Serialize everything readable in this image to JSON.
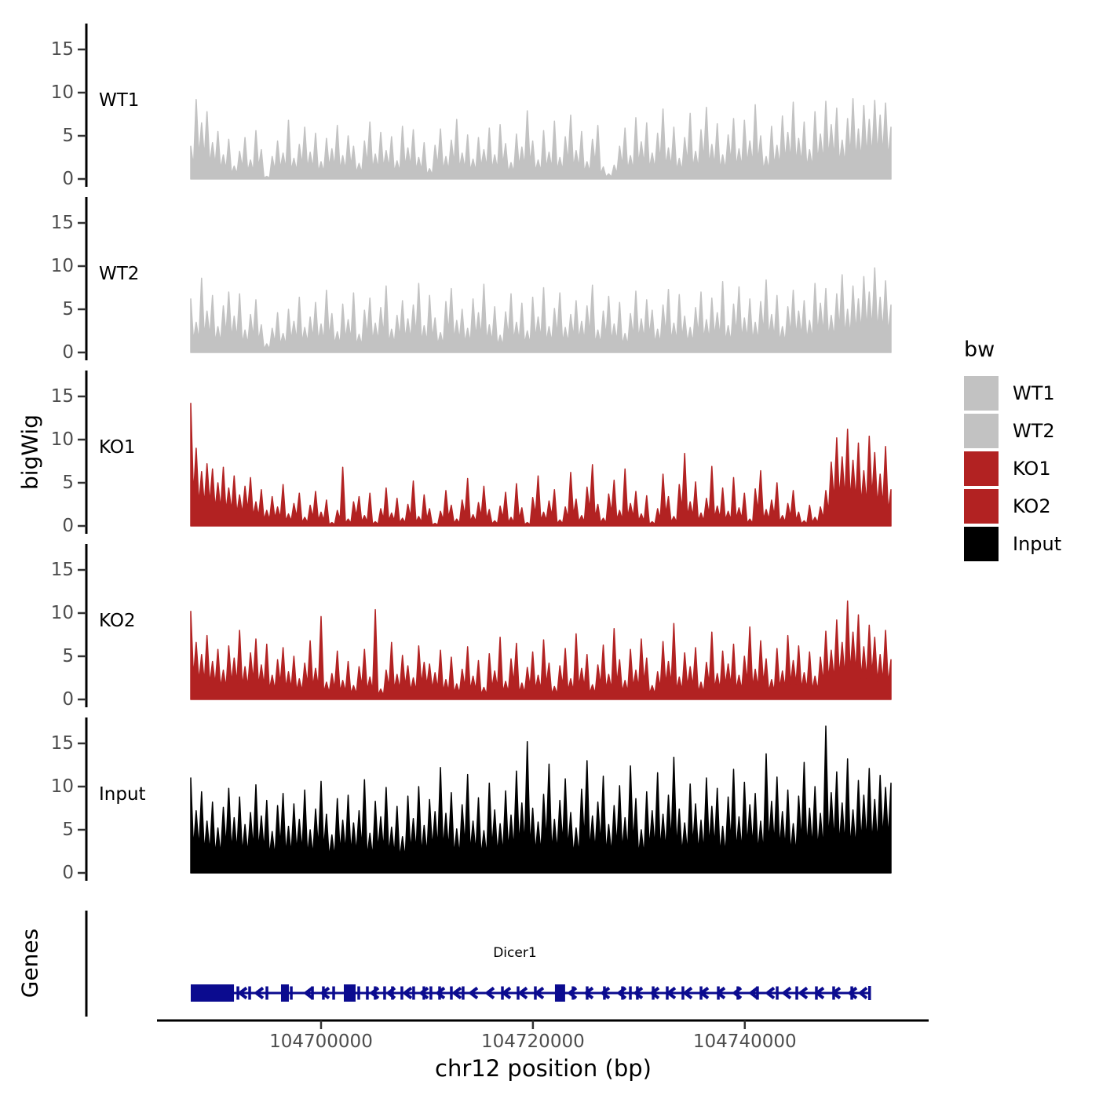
{
  "figure": {
    "background": "#ffffff",
    "axis_line_color": "#000000",
    "tick_label_color": "#4d4d4d"
  },
  "chart_data": {
    "type": "area",
    "title": "",
    "xlabel": "chr12 position (bp)",
    "ylabel": "bigWig",
    "x_start": 104687700,
    "x_end": 104753800,
    "x_ticks": [
      104700000,
      104720000,
      104740000
    ],
    "x_tick_labels": [
      "104700000",
      "104720000",
      "104740000"
    ],
    "ylim": [
      0,
      17.5
    ],
    "y_ticks": [
      0,
      5,
      10,
      15
    ],
    "y_tick_labels": [
      "0",
      "5",
      "10",
      "15"
    ],
    "grid": "off",
    "legend_position": "right",
    "legend": {
      "title": "bw",
      "entries": [
        {
          "label": "WT1",
          "color": "#c2c2c2"
        },
        {
          "label": "WT2",
          "color": "#c2c2c2"
        },
        {
          "label": "KO1",
          "color": "#b22222"
        },
        {
          "label": "KO2",
          "color": "#b22222"
        },
        {
          "label": "Input",
          "color": "#000000"
        }
      ]
    },
    "series": [
      {
        "name": "WT1",
        "color": "#c2c2c2",
        "values": [
          3.8,
          9.2,
          6.5,
          7.8,
          4.2,
          5.5,
          2.8,
          4.6,
          1.5,
          3.2,
          4.8,
          2.2,
          5.6,
          3.4,
          0.3,
          2.6,
          4.4,
          3.0,
          6.8,
          2.4,
          4.0,
          6.0,
          3.1,
          5.3,
          2.0,
          4.7,
          3.5,
          6.2,
          2.7,
          5.0,
          3.8,
          1.8,
          4.4,
          6.6,
          2.9,
          5.4,
          3.3,
          4.9,
          2.1,
          6.1,
          3.6,
          5.7,
          2.5,
          4.2,
          1.2,
          3.9,
          5.8,
          2.6,
          4.5,
          6.9,
          3.0,
          5.1,
          2.3,
          4.8,
          3.4,
          5.9,
          2.8,
          6.3,
          4.1,
          1.9,
          5.2,
          3.7,
          7.9,
          4.4,
          2.2,
          5.6,
          3.1,
          6.7,
          2.5,
          4.9,
          7.4,
          3.3,
          5.5,
          2.0,
          4.6,
          6.2,
          1.4,
          0.6,
          1.6,
          3.8,
          5.9,
          2.7,
          7.1,
          4.3,
          6.5,
          3.0,
          5.3,
          8.1,
          3.6,
          6.0,
          2.4,
          4.8,
          7.6,
          3.2,
          5.7,
          8.3,
          4.0,
          6.4,
          2.8,
          5.1,
          7.0,
          3.5,
          6.8,
          4.4,
          8.6,
          5.0,
          2.6,
          6.1,
          3.9,
          7.3,
          5.4,
          8.9,
          4.7,
          6.6,
          3.4,
          7.8,
          5.2,
          9.0,
          6.3,
          8.2,
          4.5,
          7.0,
          9.3,
          5.8,
          8.5,
          6.9,
          9.1,
          7.4,
          8.8,
          6.0
        ]
      },
      {
        "name": "WT2",
        "color": "#c2c2c2",
        "values": [
          6.2,
          3.5,
          8.6,
          4.8,
          6.6,
          3.0,
          5.4,
          7.0,
          4.2,
          6.8,
          2.6,
          4.4,
          6.1,
          3.2,
          1.0,
          2.8,
          4.6,
          2.2,
          5.0,
          3.6,
          6.4,
          2.9,
          4.1,
          5.8,
          3.3,
          7.2,
          4.5,
          2.4,
          5.6,
          3.8,
          6.9,
          2.1,
          4.9,
          6.3,
          3.4,
          5.2,
          7.7,
          2.7,
          4.3,
          6.0,
          3.9,
          5.5,
          8.0,
          3.1,
          6.6,
          4.0,
          2.3,
          5.9,
          7.4,
          3.7,
          5.0,
          2.8,
          6.2,
          4.6,
          7.9,
          3.2,
          5.3,
          2.0,
          4.7,
          6.8,
          3.5,
          5.7,
          2.5,
          6.4,
          4.1,
          7.5,
          3.0,
          5.1,
          6.9,
          2.9,
          4.4,
          6.0,
          3.6,
          5.4,
          7.8,
          2.6,
          4.8,
          6.5,
          3.3,
          5.8,
          2.2,
          4.5,
          7.1,
          3.9,
          6.1,
          4.9,
          2.7,
          5.5,
          7.3,
          3.4,
          6.7,
          4.2,
          2.9,
          5.2,
          7.0,
          3.8,
          6.3,
          4.6,
          8.2,
          3.1,
          5.6,
          7.6,
          4.0,
          6.2,
          3.5,
          5.9,
          8.4,
          4.4,
          6.6,
          3.0,
          5.3,
          7.2,
          4.8,
          6.0,
          3.7,
          8.0,
          5.7,
          7.4,
          4.3,
          6.8,
          9.0,
          5.0,
          7.7,
          6.2,
          8.8,
          7.0,
          9.8,
          6.4,
          8.3,
          5.5
        ]
      },
      {
        "name": "KO1",
        "color": "#b22222",
        "values": [
          14.2,
          9.0,
          6.3,
          7.2,
          6.6,
          5.0,
          6.8,
          4.4,
          5.8,
          3.6,
          4.6,
          5.6,
          2.8,
          4.2,
          1.8,
          3.4,
          2.2,
          4.8,
          1.4,
          2.6,
          3.8,
          1.0,
          2.4,
          4.0,
          1.6,
          3.0,
          0.4,
          1.8,
          6.8,
          0.8,
          2.8,
          3.4,
          1.2,
          3.8,
          0.5,
          2.0,
          4.4,
          1.5,
          3.2,
          0.9,
          2.5,
          5.2,
          1.1,
          3.6,
          2.0,
          0.3,
          1.7,
          4.1,
          2.4,
          0.8,
          3.0,
          5.5,
          1.3,
          2.7,
          4.6,
          1.9,
          0.6,
          2.3,
          3.9,
          1.0,
          4.9,
          2.1,
          0.4,
          3.3,
          5.8,
          1.6,
          2.9,
          4.2,
          0.7,
          2.2,
          6.2,
          3.1,
          1.2,
          4.5,
          7.1,
          2.5,
          0.9,
          3.7,
          5.3,
          1.8,
          6.6,
          2.6,
          4.0,
          1.4,
          3.5,
          0.5,
          2.0,
          6.0,
          3.4,
          1.1,
          4.8,
          8.4,
          2.8,
          5.1,
          1.5,
          3.2,
          6.9,
          2.3,
          4.4,
          1.7,
          5.6,
          2.1,
          3.8,
          0.8,
          4.3,
          6.4,
          1.9,
          3.0,
          5.0,
          1.2,
          2.6,
          4.1,
          1.6,
          0.6,
          2.4,
          1.0,
          2.2,
          4.1,
          7.4,
          10.2,
          8.0,
          11.2,
          7.6,
          9.6,
          6.4,
          10.4,
          8.5,
          6.0,
          9.2,
          4.2
        ]
      },
      {
        "name": "KO2",
        "color": "#b22222",
        "values": [
          10.2,
          6.6,
          5.2,
          7.4,
          4.4,
          5.8,
          3.4,
          6.2,
          4.8,
          8.0,
          3.8,
          5.4,
          7.0,
          4.0,
          6.4,
          2.8,
          4.6,
          6.0,
          3.2,
          5.0,
          2.4,
          4.2,
          6.8,
          3.6,
          9.6,
          2.0,
          3.0,
          5.6,
          2.2,
          4.4,
          1.6,
          3.8,
          5.8,
          2.6,
          10.4,
          1.2,
          3.4,
          6.6,
          2.9,
          5.1,
          3.9,
          2.5,
          6.2,
          4.3,
          4.1,
          3.1,
          5.7,
          2.3,
          4.9,
          1.8,
          3.5,
          6.1,
          2.7,
          4.5,
          1.4,
          5.3,
          3.3,
          7.2,
          2.1,
          4.7,
          6.5,
          1.9,
          3.7,
          5.5,
          2.8,
          6.9,
          4.2,
          1.5,
          3.9,
          5.9,
          2.4,
          7.6,
          3.6,
          5.2,
          1.7,
          4.0,
          6.3,
          2.9,
          8.2,
          4.6,
          2.2,
          5.8,
          3.4,
          7.0,
          4.8,
          1.6,
          3.2,
          6.7,
          4.4,
          8.8,
          2.6,
          5.4,
          3.8,
          6.0,
          2.0,
          4.3,
          7.8,
          3.0,
          5.6,
          4.1,
          6.4,
          2.8,
          5.0,
          8.4,
          3.5,
          6.8,
          4.7,
          2.3,
          5.9,
          3.3,
          7.4,
          4.5,
          6.2,
          3.1,
          5.5,
          2.7,
          4.9,
          7.9,
          5.7,
          9.2,
          6.6,
          11.4,
          7.8,
          9.8,
          6.1,
          8.6,
          7.2,
          5.2,
          8.0,
          4.6
        ]
      },
      {
        "name": "Input",
        "color": "#000000",
        "values": [
          11.0,
          7.2,
          9.4,
          6.0,
          8.2,
          5.2,
          7.6,
          9.8,
          6.4,
          8.8,
          5.6,
          7.0,
          10.2,
          6.6,
          8.4,
          4.8,
          7.8,
          9.2,
          5.4,
          8.0,
          6.2,
          9.6,
          5.0,
          7.4,
          10.6,
          6.8,
          4.4,
          8.6,
          6.1,
          9.0,
          5.8,
          7.2,
          10.8,
          4.6,
          8.3,
          6.5,
          9.9,
          5.3,
          7.7,
          4.2,
          8.9,
          6.3,
          10.0,
          5.5,
          8.5,
          7.1,
          12.2,
          6.9,
          9.3,
          5.1,
          7.9,
          11.4,
          6.0,
          8.7,
          4.9,
          10.4,
          7.3,
          5.7,
          9.5,
          6.7,
          11.8,
          8.1,
          15.2,
          7.5,
          5.9,
          9.1,
          12.6,
          6.2,
          8.4,
          10.9,
          7.0,
          5.2,
          9.7,
          13.0,
          6.6,
          8.2,
          11.2,
          5.6,
          7.8,
          10.1,
          6.4,
          12.4,
          8.6,
          5.0,
          9.4,
          7.2,
          11.6,
          6.8,
          9.0,
          13.4,
          7.4,
          5.8,
          10.3,
          8.0,
          6.1,
          11.0,
          7.7,
          9.8,
          5.4,
          8.8,
          12.0,
          6.5,
          10.5,
          7.9,
          9.2,
          6.0,
          13.8,
          8.3,
          11.1,
          7.1,
          9.6,
          5.7,
          8.9,
          12.8,
          7.5,
          10.0,
          6.9,
          17.0,
          9.3,
          11.7,
          8.1,
          13.2,
          7.3,
          10.7,
          9.0,
          12.1,
          8.5,
          11.3,
          9.9,
          10.4
        ]
      }
    ],
    "gene_track": {
      "axis_label": "Genes",
      "gene_name": "Dicer1",
      "gene_name_at_bp": 104718300,
      "strand": "-",
      "color": "#0b0b8f",
      "start_bp": 104687700,
      "end_bp": 104751800,
      "exon_boxes_bp": [
        [
          104687700,
          104691780
        ],
        [
          104696220,
          104696960
        ],
        [
          104702150,
          104703260
        ],
        [
          104722080,
          104723040
        ]
      ],
      "exon_ticks_bp": [
        104692150,
        104693260,
        104694890,
        104697190,
        104699190,
        104700220,
        104701190,
        104703560,
        104704370,
        104705110,
        104706000,
        104706740,
        104707630,
        104708740,
        104709710,
        104710370,
        104711190,
        104712300,
        104713410,
        104717120,
        104718600,
        104720230,
        104723790,
        104725120,
        104726750,
        104728460,
        104729200,
        104729860,
        104731350,
        104732680,
        104734160,
        104735870,
        104737500,
        104739350,
        104741200,
        104743060,
        104744910,
        104746760,
        104748390,
        104750100
      ]
    }
  }
}
